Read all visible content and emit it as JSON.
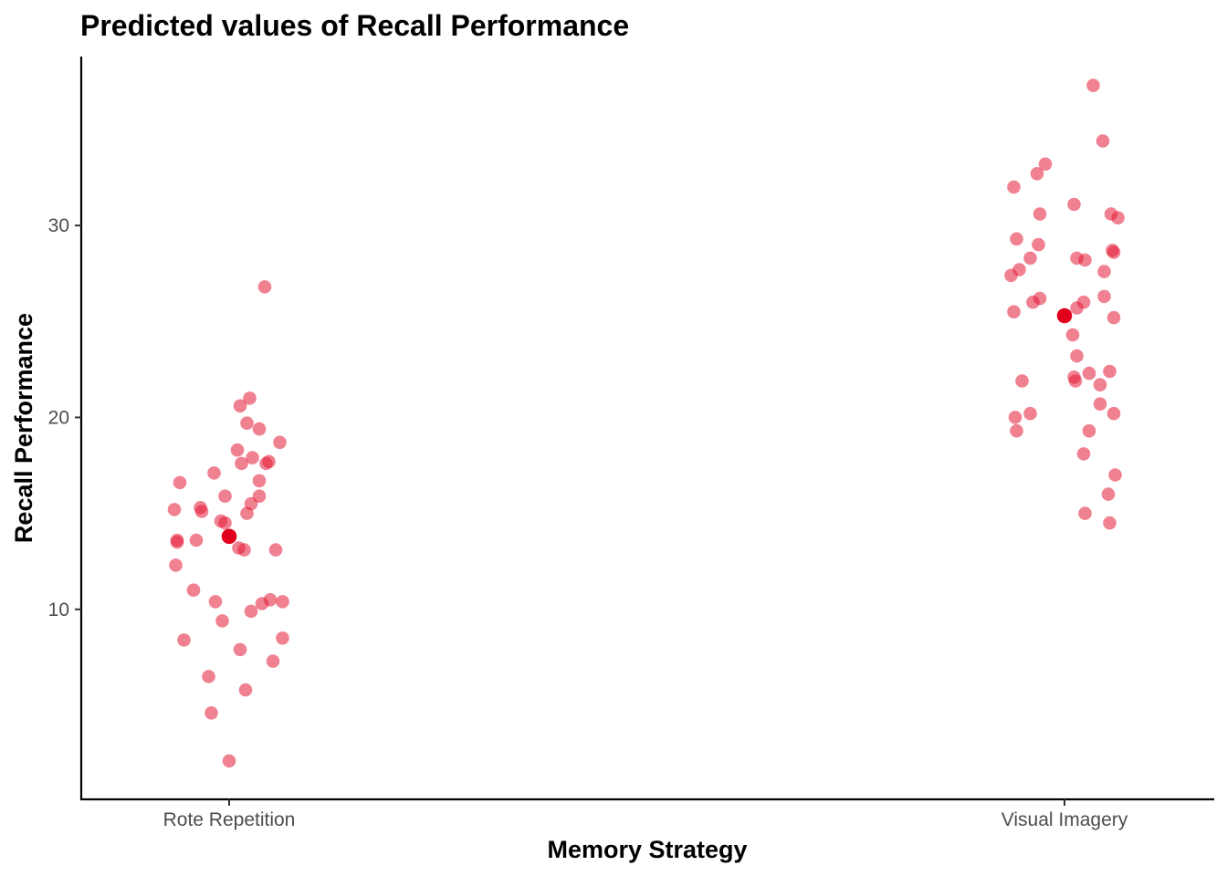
{
  "chart_data": {
    "type": "scatter",
    "title": "Predicted values of Recall Performance",
    "xlabel": "Memory Strategy",
    "ylabel": "Recall Performance",
    "categories": [
      "Rote Repetition",
      "Visual Imagery"
    ],
    "yticks": [
      10,
      20,
      30
    ],
    "ylim": [
      0.1,
      38.8
    ],
    "grid": false,
    "legend": "none",
    "colors": {
      "raw_point": "#e41a36",
      "raw_point_opacity": 0.55,
      "predicted_point": "#e0001b",
      "axis": "#000000",
      "tick_label": "#4d4d4d"
    },
    "predicted": [
      {
        "category": "Rote Repetition",
        "value": 13.8
      },
      {
        "category": "Visual Imagery",
        "value": 25.3
      }
    ],
    "raw_points": [
      {
        "category": "Rote Repetition",
        "x_jitter": 0.26,
        "value": 26.8
      },
      {
        "category": "Rote Repetition",
        "x_jitter": 0.15,
        "value": 21.0
      },
      {
        "category": "Rote Repetition",
        "x_jitter": 0.08,
        "value": 20.6
      },
      {
        "category": "Rote Repetition",
        "x_jitter": 0.13,
        "value": 19.7
      },
      {
        "category": "Rote Repetition",
        "x_jitter": 0.22,
        "value": 19.4
      },
      {
        "category": "Rote Repetition",
        "x_jitter": 0.37,
        "value": 18.7
      },
      {
        "category": "Rote Repetition",
        "x_jitter": 0.06,
        "value": 18.3
      },
      {
        "category": "Rote Repetition",
        "x_jitter": 0.17,
        "value": 17.9
      },
      {
        "category": "Rote Repetition",
        "x_jitter": 0.29,
        "value": 17.7
      },
      {
        "category": "Rote Repetition",
        "x_jitter": 0.09,
        "value": 17.6
      },
      {
        "category": "Rote Repetition",
        "x_jitter": 0.27,
        "value": 17.6
      },
      {
        "category": "Rote Repetition",
        "x_jitter": -0.11,
        "value": 17.1
      },
      {
        "category": "Rote Repetition",
        "x_jitter": 0.22,
        "value": 16.7
      },
      {
        "category": "Rote Repetition",
        "x_jitter": -0.36,
        "value": 16.6
      },
      {
        "category": "Rote Repetition",
        "x_jitter": -0.03,
        "value": 15.9
      },
      {
        "category": "Rote Repetition",
        "x_jitter": 0.22,
        "value": 15.9
      },
      {
        "category": "Rote Repetition",
        "x_jitter": 0.16,
        "value": 15.5
      },
      {
        "category": "Rote Repetition",
        "x_jitter": -0.21,
        "value": 15.3
      },
      {
        "category": "Rote Repetition",
        "x_jitter": -0.4,
        "value": 15.2
      },
      {
        "category": "Rote Repetition",
        "x_jitter": -0.2,
        "value": 15.1
      },
      {
        "category": "Rote Repetition",
        "x_jitter": 0.13,
        "value": 15.0
      },
      {
        "category": "Rote Repetition",
        "x_jitter": -0.06,
        "value": 14.6
      },
      {
        "category": "Rote Repetition",
        "x_jitter": -0.03,
        "value": 14.5
      },
      {
        "category": "Rote Repetition",
        "x_jitter": -0.38,
        "value": 13.6
      },
      {
        "category": "Rote Repetition",
        "x_jitter": -0.24,
        "value": 13.6
      },
      {
        "category": "Rote Repetition",
        "x_jitter": -0.38,
        "value": 13.5
      },
      {
        "category": "Rote Repetition",
        "x_jitter": 0.07,
        "value": 13.2
      },
      {
        "category": "Rote Repetition",
        "x_jitter": 0.11,
        "value": 13.1
      },
      {
        "category": "Rote Repetition",
        "x_jitter": 0.34,
        "value": 13.1
      },
      {
        "category": "Rote Repetition",
        "x_jitter": -0.39,
        "value": 12.3
      },
      {
        "category": "Rote Repetition",
        "x_jitter": -0.26,
        "value": 11.0
      },
      {
        "category": "Rote Repetition",
        "x_jitter": 0.3,
        "value": 10.5
      },
      {
        "category": "Rote Repetition",
        "x_jitter": 0.39,
        "value": 10.4
      },
      {
        "category": "Rote Repetition",
        "x_jitter": -0.1,
        "value": 10.4
      },
      {
        "category": "Rote Repetition",
        "x_jitter": 0.24,
        "value": 10.3
      },
      {
        "category": "Rote Repetition",
        "x_jitter": 0.16,
        "value": 9.9
      },
      {
        "category": "Rote Repetition",
        "x_jitter": -0.05,
        "value": 9.4
      },
      {
        "category": "Rote Repetition",
        "x_jitter": 0.39,
        "value": 8.5
      },
      {
        "category": "Rote Repetition",
        "x_jitter": -0.33,
        "value": 8.4
      },
      {
        "category": "Rote Repetition",
        "x_jitter": 0.08,
        "value": 7.9
      },
      {
        "category": "Rote Repetition",
        "x_jitter": 0.32,
        "value": 7.3
      },
      {
        "category": "Rote Repetition",
        "x_jitter": -0.15,
        "value": 6.5
      },
      {
        "category": "Rote Repetition",
        "x_jitter": 0.12,
        "value": 5.8
      },
      {
        "category": "Rote Repetition",
        "x_jitter": -0.13,
        "value": 4.6
      },
      {
        "category": "Rote Repetition",
        "x_jitter": 0.0,
        "value": 2.1
      },
      {
        "category": "Visual Imagery",
        "x_jitter": 0.21,
        "value": 37.3
      },
      {
        "category": "Visual Imagery",
        "x_jitter": 0.28,
        "value": 34.4
      },
      {
        "category": "Visual Imagery",
        "x_jitter": -0.14,
        "value": 33.2
      },
      {
        "category": "Visual Imagery",
        "x_jitter": -0.2,
        "value": 32.7
      },
      {
        "category": "Visual Imagery",
        "x_jitter": -0.37,
        "value": 32.0
      },
      {
        "category": "Visual Imagery",
        "x_jitter": 0.07,
        "value": 31.1
      },
      {
        "category": "Visual Imagery",
        "x_jitter": 0.34,
        "value": 30.6
      },
      {
        "category": "Visual Imagery",
        "x_jitter": -0.18,
        "value": 30.6
      },
      {
        "category": "Visual Imagery",
        "x_jitter": 0.39,
        "value": 30.4
      },
      {
        "category": "Visual Imagery",
        "x_jitter": -0.35,
        "value": 29.3
      },
      {
        "category": "Visual Imagery",
        "x_jitter": -0.19,
        "value": 29.0
      },
      {
        "category": "Visual Imagery",
        "x_jitter": 0.35,
        "value": 28.7
      },
      {
        "category": "Visual Imagery",
        "x_jitter": 0.36,
        "value": 28.6
      },
      {
        "category": "Visual Imagery",
        "x_jitter": 0.09,
        "value": 28.3
      },
      {
        "category": "Visual Imagery",
        "x_jitter": -0.25,
        "value": 28.3
      },
      {
        "category": "Visual Imagery",
        "x_jitter": 0.15,
        "value": 28.2
      },
      {
        "category": "Visual Imagery",
        "x_jitter": -0.33,
        "value": 27.7
      },
      {
        "category": "Visual Imagery",
        "x_jitter": 0.29,
        "value": 27.6
      },
      {
        "category": "Visual Imagery",
        "x_jitter": -0.39,
        "value": 27.4
      },
      {
        "category": "Visual Imagery",
        "x_jitter": 0.29,
        "value": 26.3
      },
      {
        "category": "Visual Imagery",
        "x_jitter": -0.18,
        "value": 26.2
      },
      {
        "category": "Visual Imagery",
        "x_jitter": 0.14,
        "value": 26.0
      },
      {
        "category": "Visual Imagery",
        "x_jitter": -0.23,
        "value": 26.0
      },
      {
        "category": "Visual Imagery",
        "x_jitter": 0.09,
        "value": 25.7
      },
      {
        "category": "Visual Imagery",
        "x_jitter": -0.37,
        "value": 25.5
      },
      {
        "category": "Visual Imagery",
        "x_jitter": 0.36,
        "value": 25.2
      },
      {
        "category": "Visual Imagery",
        "x_jitter": 0.06,
        "value": 24.3
      },
      {
        "category": "Visual Imagery",
        "x_jitter": 0.09,
        "value": 23.2
      },
      {
        "category": "Visual Imagery",
        "x_jitter": 0.33,
        "value": 22.4
      },
      {
        "category": "Visual Imagery",
        "x_jitter": 0.18,
        "value": 22.3
      },
      {
        "category": "Visual Imagery",
        "x_jitter": 0.07,
        "value": 22.1
      },
      {
        "category": "Visual Imagery",
        "x_jitter": 0.08,
        "value": 21.9
      },
      {
        "category": "Visual Imagery",
        "x_jitter": -0.31,
        "value": 21.9
      },
      {
        "category": "Visual Imagery",
        "x_jitter": 0.26,
        "value": 21.7
      },
      {
        "category": "Visual Imagery",
        "x_jitter": 0.26,
        "value": 20.7
      },
      {
        "category": "Visual Imagery",
        "x_jitter": -0.25,
        "value": 20.2
      },
      {
        "category": "Visual Imagery",
        "x_jitter": 0.36,
        "value": 20.2
      },
      {
        "category": "Visual Imagery",
        "x_jitter": -0.36,
        "value": 20.0
      },
      {
        "category": "Visual Imagery",
        "x_jitter": -0.35,
        "value": 19.3
      },
      {
        "category": "Visual Imagery",
        "x_jitter": 0.18,
        "value": 19.3
      },
      {
        "category": "Visual Imagery",
        "x_jitter": 0.14,
        "value": 18.1
      },
      {
        "category": "Visual Imagery",
        "x_jitter": 0.37,
        "value": 17.0
      },
      {
        "category": "Visual Imagery",
        "x_jitter": 0.32,
        "value": 16.0
      },
      {
        "category": "Visual Imagery",
        "x_jitter": 0.15,
        "value": 15.0
      },
      {
        "category": "Visual Imagery",
        "x_jitter": 0.33,
        "value": 14.5
      }
    ]
  }
}
